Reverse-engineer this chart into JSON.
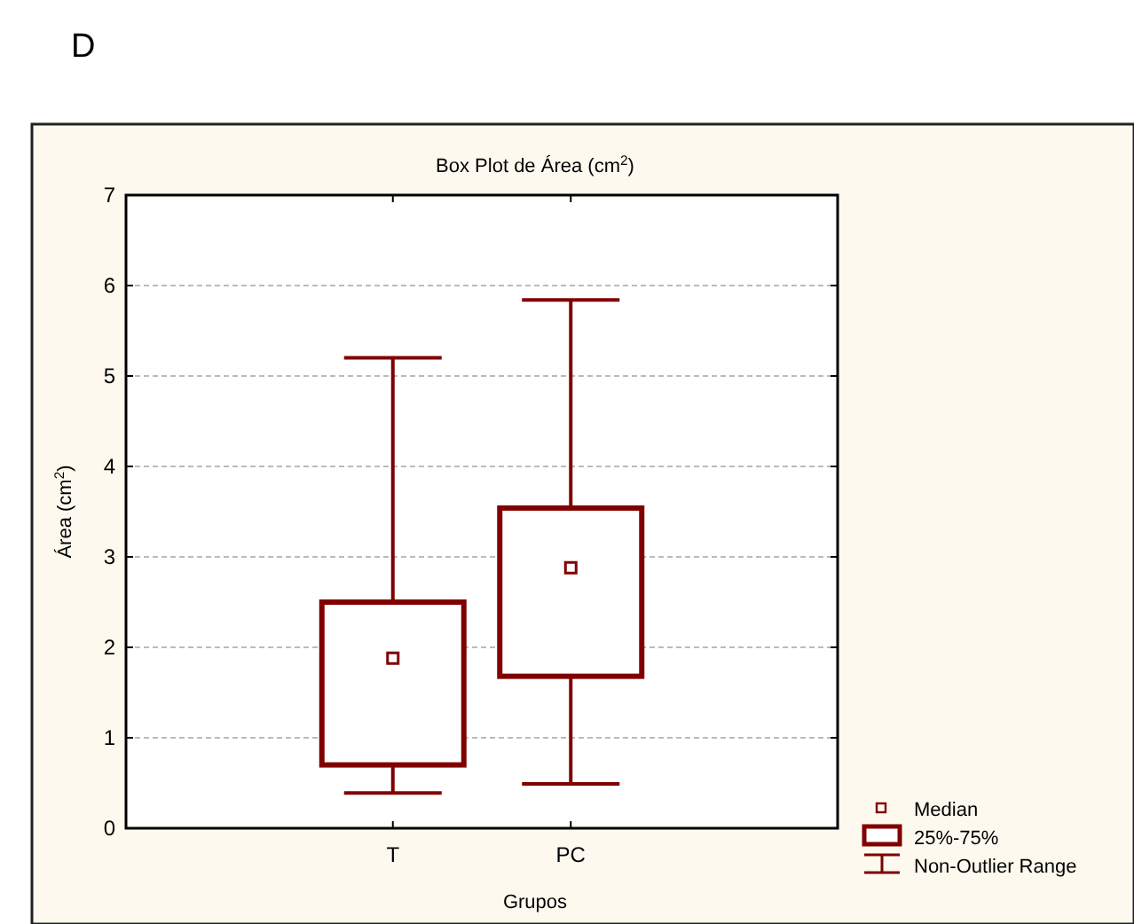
{
  "chart_data": {
    "type": "box",
    "title": "Box Plot de Área (cm$^{2}$)",
    "xlabel": "Grupos",
    "ylabel": "Área (cm$^{2}$)",
    "categories": [
      "T",
      "PC"
    ],
    "series": [
      {
        "color": "#800000",
        "boxes": [
          {
            "low": 0.39,
            "q1": 0.7,
            "median": 1.88,
            "q3": 2.5,
            "high": 5.2
          },
          {
            "low": 0.49,
            "q1": 1.68,
            "median": 2.88,
            "q3": 3.54,
            "high": 5.84
          }
        ]
      }
    ],
    "ylim": [
      0,
      7
    ],
    "yticks": [
      0,
      1,
      2,
      3,
      4,
      5,
      6,
      7
    ],
    "grid": "y",
    "marker": "square",
    "annotations": [
      "D",
      "Median",
      "25%-75%",
      "Non-Outlier Range"
    ]
  }
}
